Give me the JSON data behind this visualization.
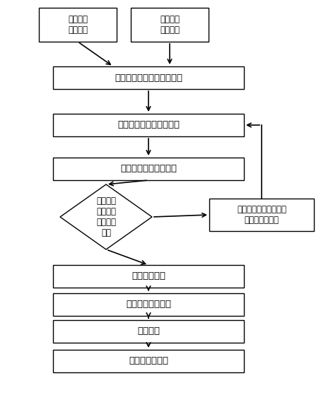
{
  "bg_color": "#ffffff",
  "border_color": "#000000",
  "arrow_color": "#000000",
  "font_size_main": 9.5,
  "font_size_small": 8.5,
  "font_size_diamond": 8.5,
  "nodes": {
    "static": {
      "text": "获取静态\n基础数据"
    },
    "dynamic": {
      "text": "获取动态\n基础数据"
    },
    "calc_flow": {
      "text": "计算时段站台车内断面客流"
    },
    "calc_trips": {
      "text": "计算上下行时段发班班次"
    },
    "calc_vehicles": {
      "text": "计算上下行时段配车数"
    },
    "diamond": {
      "text": "配车数量\n最高时段\n是否在早\n高峰"
    },
    "add_peak": {
      "text": "加密早高峰时段满载率\n最高的时段班次"
    },
    "total": {
      "text": "预计总配车数"
    },
    "schedule": {
      "text": "生成预发车时刻表"
    },
    "arrange": {
      "text": "车辆排班"
    },
    "result": {
      "text": "生成排班结果表"
    }
  }
}
